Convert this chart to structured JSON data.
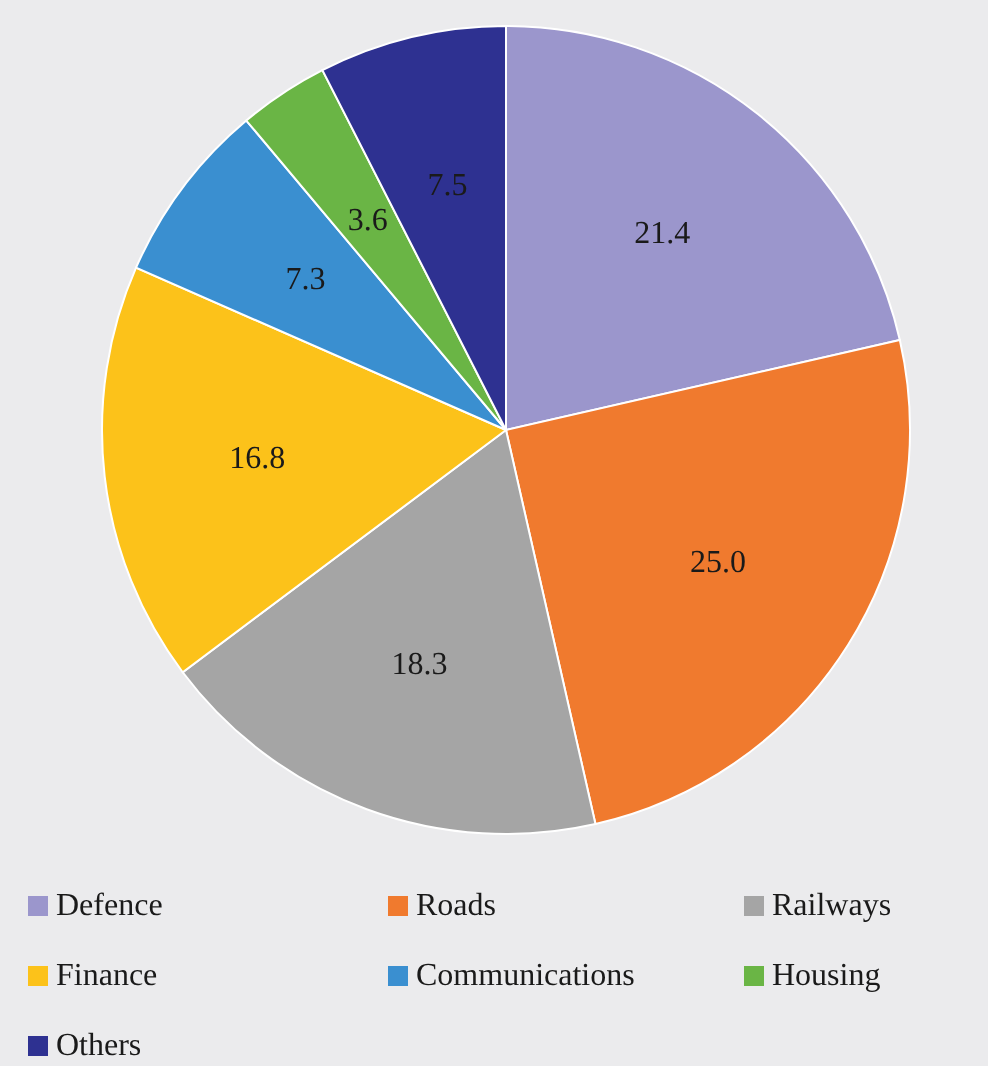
{
  "chart_data": {
    "type": "pie",
    "categories": [
      "Defence",
      "Roads",
      "Railways",
      "Finance",
      "Communications",
      "Housing",
      "Others"
    ],
    "values": [
      21.4,
      25.0,
      18.3,
      16.8,
      7.3,
      3.6,
      7.5
    ],
    "colors": [
      "#9b96cc",
      "#f07a2e",
      "#a5a5a5",
      "#fcc21a",
      "#3a8fd0",
      "#6ab545",
      "#2e3191"
    ],
    "value_labels": [
      "21.4",
      "25.0",
      "18.3",
      "16.8",
      "7.3",
      "3.6",
      "7.5"
    ],
    "legend": "bottom"
  }
}
